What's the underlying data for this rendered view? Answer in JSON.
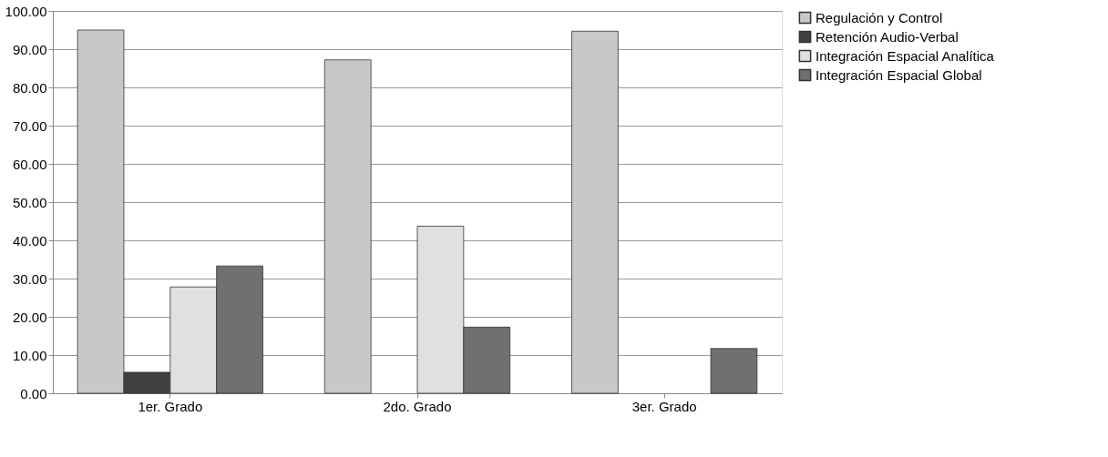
{
  "chart_data": {
    "type": "bar",
    "categories": [
      "1er. Grado",
      "2do. Grado",
      "3er. Grado"
    ],
    "series": [
      {
        "name": "Regulación y Control",
        "color": "#c8c8c8",
        "values": [
          95.0,
          87.2,
          94.7
        ]
      },
      {
        "name": "Retención Audio-Verbal",
        "color": "#404040",
        "values": [
          5.5,
          null,
          null
        ]
      },
      {
        "name": "Integración Espacial Analítica",
        "color": "#e0e0e0",
        "values": [
          27.8,
          43.7,
          null
        ]
      },
      {
        "name": "Integración Espacial Global",
        "color": "#707070",
        "values": [
          33.3,
          17.3,
          11.7
        ]
      }
    ],
    "ylim": [
      0,
      100
    ],
    "yticks": [
      {
        "value": 0,
        "label": "0.00"
      },
      {
        "value": 10,
        "label": "10.00"
      },
      {
        "value": 20,
        "label": "20.00"
      },
      {
        "value": 30,
        "label": "30.00"
      },
      {
        "value": 40,
        "label": "40.00"
      },
      {
        "value": 50,
        "label": "50.00"
      },
      {
        "value": 60,
        "label": "60.00"
      },
      {
        "value": 70,
        "label": "70.00"
      },
      {
        "value": 80,
        "label": "80.00"
      },
      {
        "value": 90,
        "label": "90.00"
      },
      {
        "value": 100,
        "label": "100.00"
      }
    ],
    "grid": "y",
    "legend": "right"
  }
}
